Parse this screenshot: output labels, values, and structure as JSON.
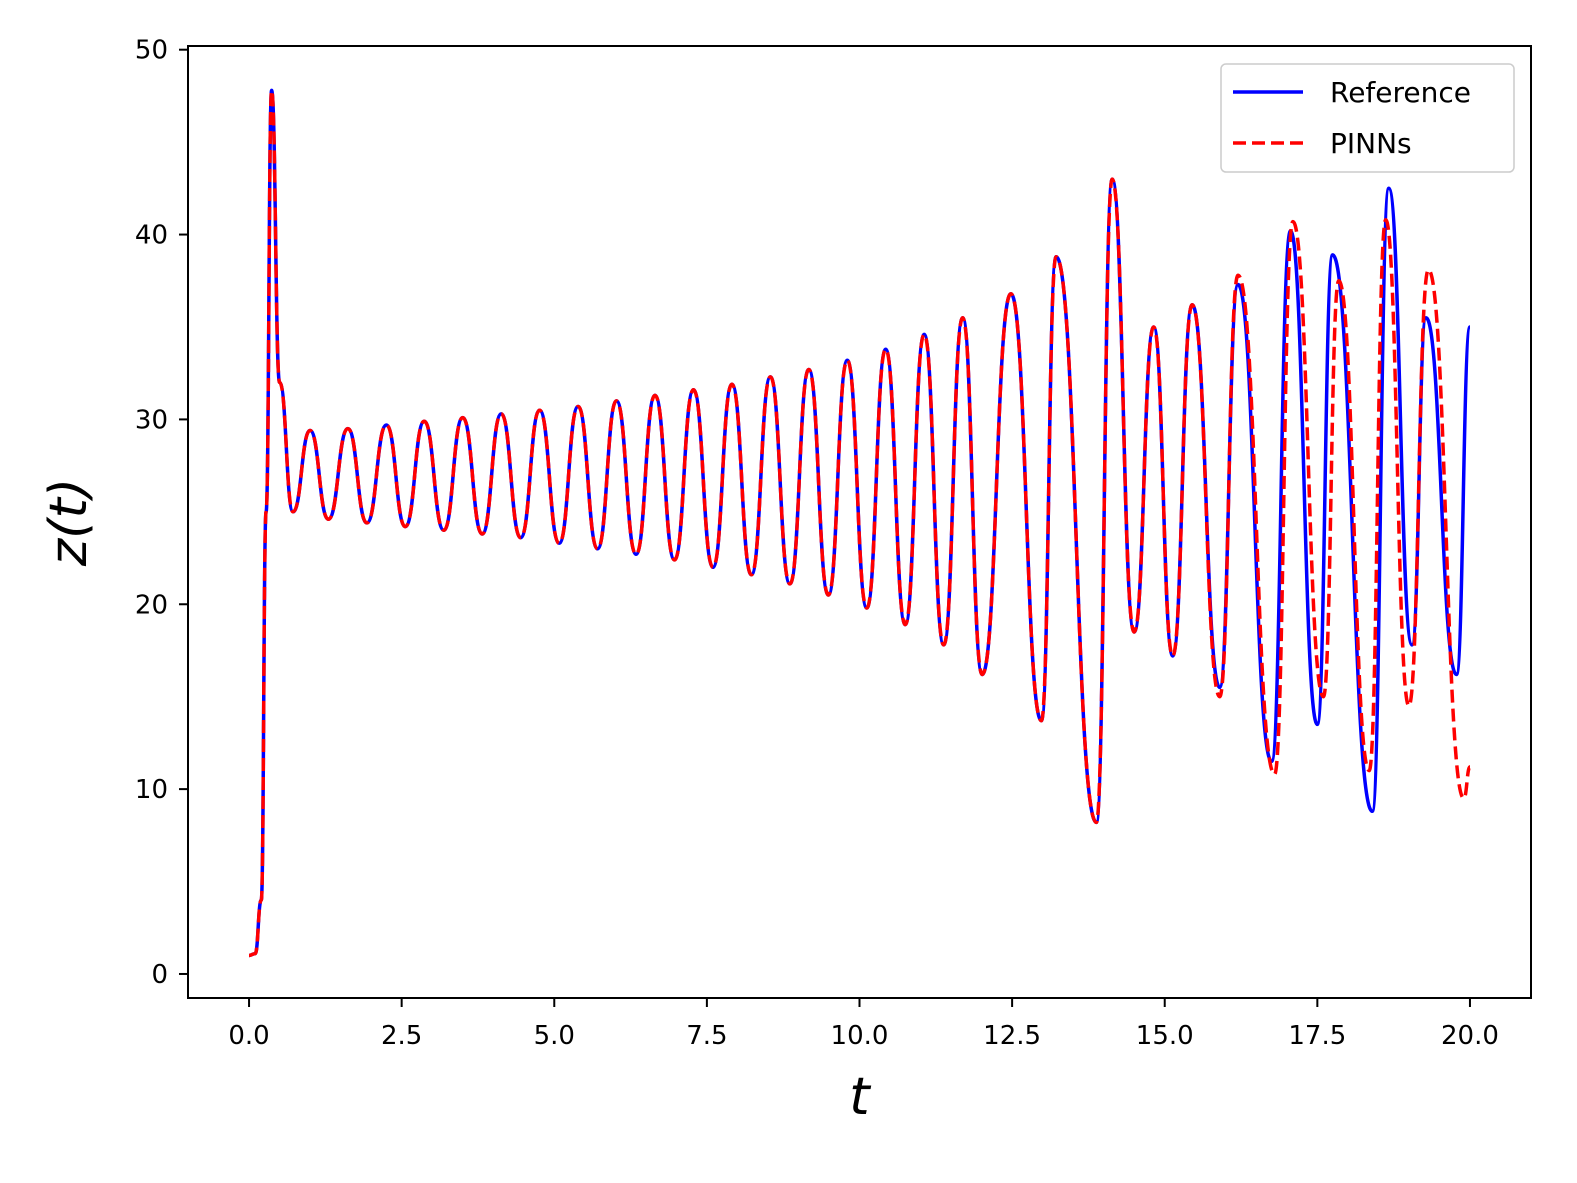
{
  "chart_data": {
    "type": "line",
    "xlabel": "t",
    "ylabel": "z(t)",
    "xlim": [
      -1.0,
      21.0
    ],
    "ylim": [
      -1.3,
      50.2
    ],
    "x_ticks": [
      0.0,
      2.5,
      5.0,
      7.5,
      10.0,
      12.5,
      15.0,
      17.5,
      20.0
    ],
    "x_tick_labels": [
      "0.0",
      "2.5",
      "5.0",
      "7.5",
      "10.0",
      "12.5",
      "15.0",
      "17.5",
      "20.0"
    ],
    "y_ticks": [
      0,
      10,
      20,
      30,
      40,
      50
    ],
    "y_tick_labels": [
      "0",
      "10",
      "20",
      "30",
      "40",
      "50"
    ],
    "grid": false,
    "legend_position": "top-right",
    "series": [
      {
        "name": "Reference",
        "color": "#0000ff",
        "style": "solid",
        "points": [
          [
            0.0,
            1.0
          ],
          [
            0.1,
            1.1
          ],
          [
            0.2,
            4.0
          ],
          [
            0.28,
            25.0
          ],
          [
            0.37,
            47.8
          ],
          [
            0.5,
            32.0
          ],
          [
            0.72,
            25.0
          ],
          [
            1.0,
            29.4
          ],
          [
            1.3,
            24.6
          ],
          [
            1.62,
            29.5
          ],
          [
            1.93,
            24.4
          ],
          [
            2.25,
            29.7
          ],
          [
            2.56,
            24.2
          ],
          [
            2.87,
            29.9
          ],
          [
            3.19,
            24.0
          ],
          [
            3.5,
            30.1
          ],
          [
            3.82,
            23.8
          ],
          [
            4.13,
            30.3
          ],
          [
            4.45,
            23.6
          ],
          [
            4.76,
            30.5
          ],
          [
            5.08,
            23.3
          ],
          [
            5.39,
            30.7
          ],
          [
            5.71,
            23.0
          ],
          [
            6.02,
            31.0
          ],
          [
            6.34,
            22.7
          ],
          [
            6.65,
            31.3
          ],
          [
            6.97,
            22.4
          ],
          [
            7.28,
            31.6
          ],
          [
            7.6,
            22.0
          ],
          [
            7.91,
            31.9
          ],
          [
            8.23,
            21.6
          ],
          [
            8.54,
            32.3
          ],
          [
            8.86,
            21.1
          ],
          [
            9.17,
            32.7
          ],
          [
            9.49,
            20.5
          ],
          [
            9.8,
            33.2
          ],
          [
            10.12,
            19.8
          ],
          [
            10.43,
            33.8
          ],
          [
            10.75,
            18.9
          ],
          [
            11.06,
            34.6
          ],
          [
            11.38,
            17.8
          ],
          [
            11.69,
            35.5
          ],
          [
            12.01,
            16.2
          ],
          [
            12.48,
            36.8
          ],
          [
            12.98,
            13.7
          ],
          [
            13.22,
            38.8
          ],
          [
            13.88,
            8.2
          ],
          [
            14.14,
            43.0
          ],
          [
            14.5,
            18.5
          ],
          [
            14.82,
            35.0
          ],
          [
            15.13,
            17.2
          ],
          [
            15.45,
            36.2
          ],
          [
            15.9,
            15.5
          ],
          [
            16.2,
            37.3
          ],
          [
            16.75,
            11.5
          ],
          [
            17.06,
            40.2
          ],
          [
            17.5,
            13.5
          ],
          [
            17.75,
            38.9
          ],
          [
            18.4,
            8.8
          ],
          [
            18.67,
            42.5
          ],
          [
            19.05,
            17.8
          ],
          [
            19.28,
            35.5
          ],
          [
            19.78,
            16.2
          ],
          [
            20.0,
            35.0
          ]
        ]
      },
      {
        "name": "PINNs",
        "color": "#ff0000",
        "style": "dashed",
        "points": [
          [
            0.0,
            1.0
          ],
          [
            0.1,
            1.1
          ],
          [
            0.2,
            4.0
          ],
          [
            0.28,
            25.0
          ],
          [
            0.37,
            47.8
          ],
          [
            0.5,
            32.0
          ],
          [
            0.72,
            25.0
          ],
          [
            1.0,
            29.4
          ],
          [
            1.3,
            24.6
          ],
          [
            1.62,
            29.5
          ],
          [
            1.93,
            24.4
          ],
          [
            2.25,
            29.7
          ],
          [
            2.56,
            24.2
          ],
          [
            2.87,
            29.9
          ],
          [
            3.19,
            24.0
          ],
          [
            3.5,
            30.1
          ],
          [
            3.82,
            23.8
          ],
          [
            4.13,
            30.3
          ],
          [
            4.45,
            23.6
          ],
          [
            4.76,
            30.5
          ],
          [
            5.08,
            23.3
          ],
          [
            5.39,
            30.7
          ],
          [
            5.71,
            23.0
          ],
          [
            6.02,
            31.0
          ],
          [
            6.34,
            22.7
          ],
          [
            6.65,
            31.3
          ],
          [
            6.97,
            22.4
          ],
          [
            7.28,
            31.6
          ],
          [
            7.6,
            22.0
          ],
          [
            7.91,
            31.9
          ],
          [
            8.23,
            21.6
          ],
          [
            8.54,
            32.3
          ],
          [
            8.86,
            21.1
          ],
          [
            9.17,
            32.7
          ],
          [
            9.49,
            20.5
          ],
          [
            9.8,
            33.2
          ],
          [
            10.12,
            19.8
          ],
          [
            10.43,
            33.8
          ],
          [
            10.75,
            18.9
          ],
          [
            11.06,
            34.6
          ],
          [
            11.38,
            17.8
          ],
          [
            11.69,
            35.5
          ],
          [
            12.01,
            16.2
          ],
          [
            12.48,
            36.8
          ],
          [
            12.98,
            13.7
          ],
          [
            13.22,
            38.8
          ],
          [
            13.88,
            8.2
          ],
          [
            14.14,
            43.0
          ],
          [
            14.5,
            18.5
          ],
          [
            14.82,
            35.0
          ],
          [
            15.13,
            17.2
          ],
          [
            15.45,
            36.2
          ],
          [
            15.9,
            15.0
          ],
          [
            16.2,
            37.8
          ],
          [
            16.8,
            10.8
          ],
          [
            17.1,
            40.7
          ],
          [
            17.6,
            15.0
          ],
          [
            17.85,
            37.5
          ],
          [
            18.35,
            11.0
          ],
          [
            18.62,
            40.8
          ],
          [
            19.0,
            14.5
          ],
          [
            19.32,
            38.1
          ],
          [
            19.9,
            9.5
          ],
          [
            20.0,
            11.2
          ]
        ]
      }
    ]
  }
}
